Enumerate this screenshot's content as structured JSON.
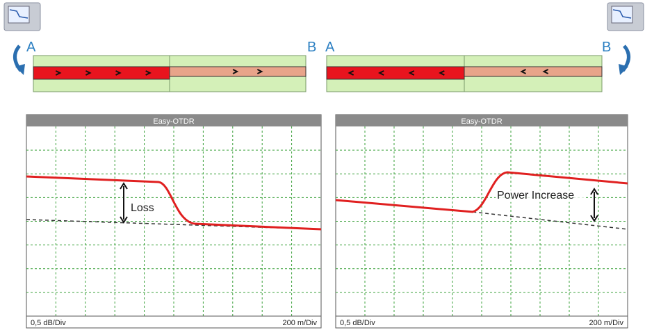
{
  "endpoints": {
    "left": {
      "a": "A",
      "b": "B"
    },
    "right": {
      "a": "A",
      "b": "B"
    }
  },
  "panels": [
    {
      "title": "Easy-OTDR",
      "annotation": "Loss",
      "y_scale": "0,5 dB/Div",
      "x_scale": "200 m/Div"
    },
    {
      "title": "Easy-OTDR",
      "annotation": "Power Increase",
      "y_scale": "0,5 dB/Div",
      "x_scale": "200 m/Div"
    }
  ]
}
